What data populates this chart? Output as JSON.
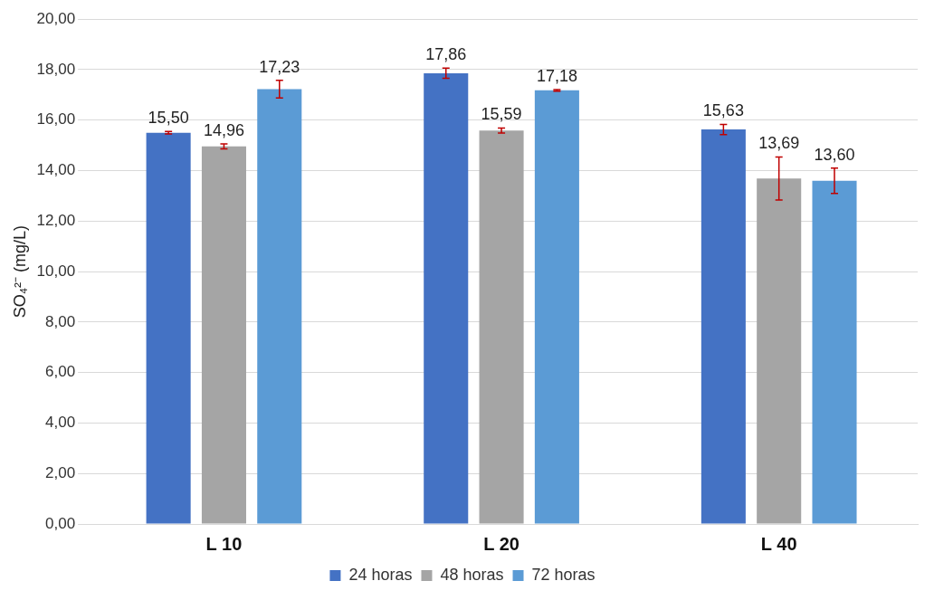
{
  "chart_data": {
    "type": "bar",
    "ylabel": "SO₄²⁻ (mg/L)",
    "categories": [
      "L 10",
      "L 20",
      "L 40"
    ],
    "series": [
      {
        "name": "24 horas",
        "color": "#4472c4",
        "values": [
          15.5,
          17.86,
          15.63
        ],
        "errors": [
          0.05,
          0.2,
          0.2
        ],
        "value_labels": [
          "15,50",
          "17,86",
          "15,63"
        ]
      },
      {
        "name": "48 horas",
        "color": "#a5a5a5",
        "values": [
          14.96,
          15.59,
          13.69
        ],
        "errors": [
          0.1,
          0.1,
          0.85
        ],
        "value_labels": [
          "14,96",
          "15,59",
          "13,69"
        ]
      },
      {
        "name": "72 horas",
        "color": "#5b9bd5",
        "values": [
          17.23,
          17.18,
          13.6
        ],
        "errors": [
          0.35,
          0.03,
          0.5
        ],
        "value_labels": [
          "17,23",
          "17,18",
          "13,60"
        ]
      }
    ],
    "ylim": [
      0,
      20
    ],
    "yticks": [
      {
        "value": 0,
        "label": "0,00"
      },
      {
        "value": 2,
        "label": "2,00"
      },
      {
        "value": 4,
        "label": "4,00"
      },
      {
        "value": 6,
        "label": "6,00"
      },
      {
        "value": 8,
        "label": "8,00"
      },
      {
        "value": 10,
        "label": "10,00"
      },
      {
        "value": 12,
        "label": "12,00"
      },
      {
        "value": 14,
        "label": "14,00"
      },
      {
        "value": 16,
        "label": "16,00"
      },
      {
        "value": 18,
        "label": "18,00"
      },
      {
        "value": 20,
        "label": "20,00"
      }
    ],
    "grid": "y",
    "legend": "bottom"
  }
}
